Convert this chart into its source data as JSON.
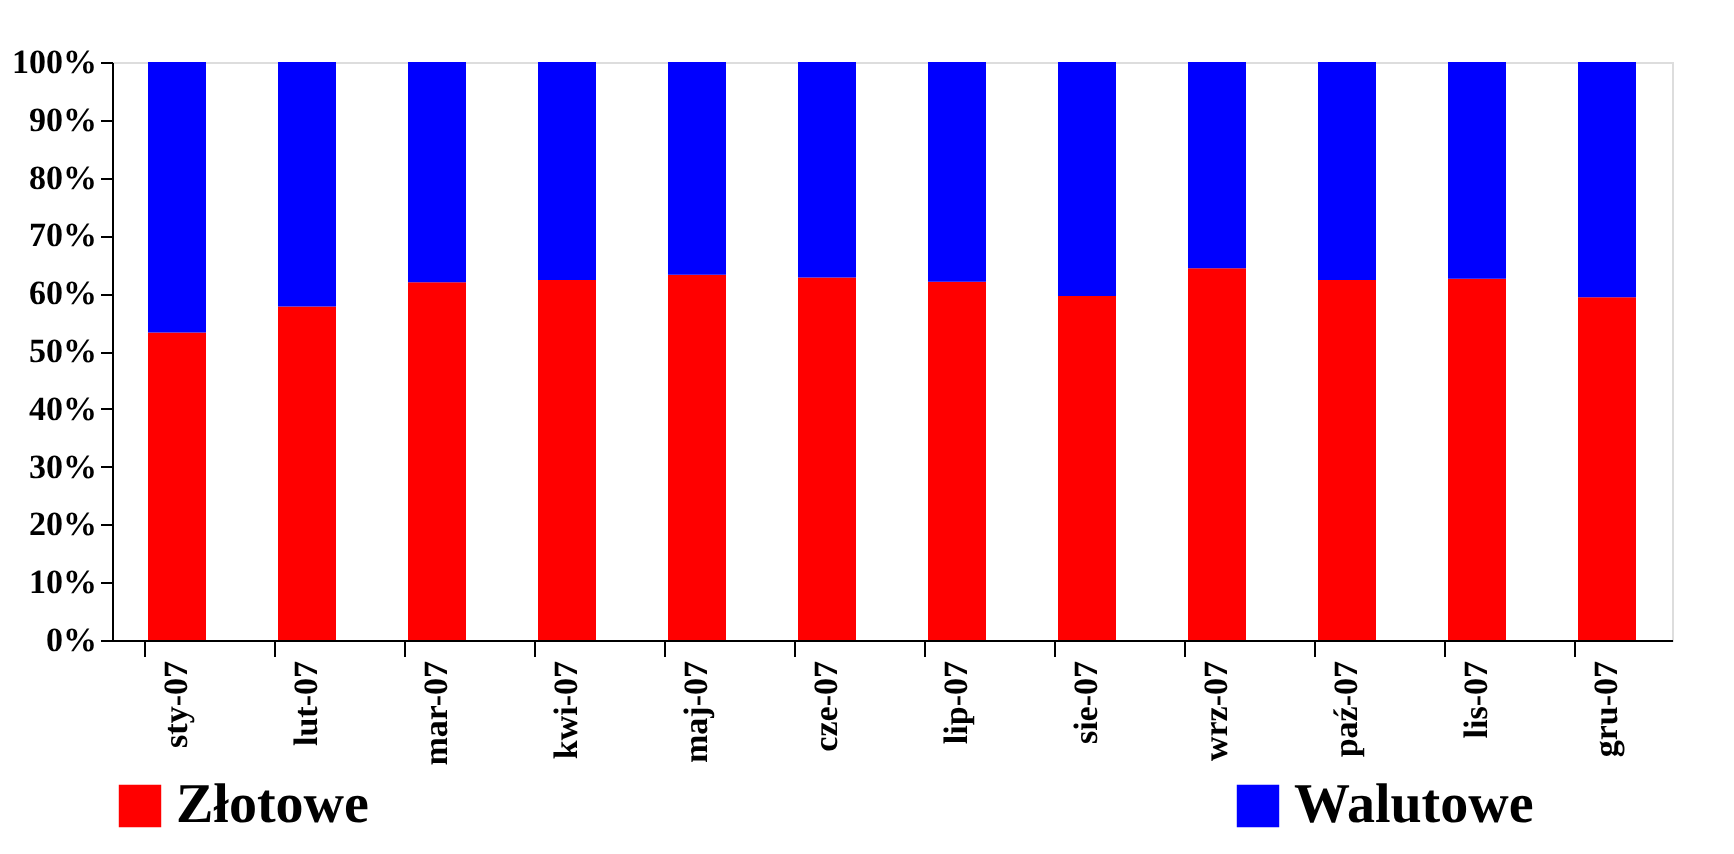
{
  "chart_data": {
    "type": "bar",
    "stacked": true,
    "categories": [
      "sty-07",
      "lut-07",
      "mar-07",
      "kwi-07",
      "maj-07",
      "cze-07",
      "lip-07",
      "sie-07",
      "wrz-07",
      "paź-07",
      "lis-07",
      "gru-07"
    ],
    "series": [
      {
        "name": "Złotowe",
        "color": "#ff0000",
        "values": [
          53.2,
          57.7,
          61.9,
          62.3,
          63.2,
          62.7,
          62.0,
          59.5,
          64.3,
          62.3,
          62.5,
          59.3
        ]
      },
      {
        "name": "Walutowe",
        "color": "#0000ff",
        "values": [
          46.8,
          42.3,
          38.1,
          37.7,
          36.8,
          37.3,
          38.0,
          40.5,
          35.7,
          37.7,
          37.5,
          40.7
        ]
      }
    ],
    "ylim": [
      0,
      100
    ],
    "yticks": [
      {
        "value": 0,
        "label": "0%"
      },
      {
        "value": 10,
        "label": "10%"
      },
      {
        "value": 20,
        "label": "20%"
      },
      {
        "value": 30,
        "label": "30%"
      },
      {
        "value": 40,
        "label": "40%"
      },
      {
        "value": 50,
        "label": "50%"
      },
      {
        "value": 60,
        "label": "60%"
      },
      {
        "value": 70,
        "label": "70%"
      },
      {
        "value": 80,
        "label": "80%"
      },
      {
        "value": 90,
        "label": "90%"
      },
      {
        "value": 100,
        "label": "100%"
      }
    ],
    "grid": false,
    "legend": "bottom"
  }
}
